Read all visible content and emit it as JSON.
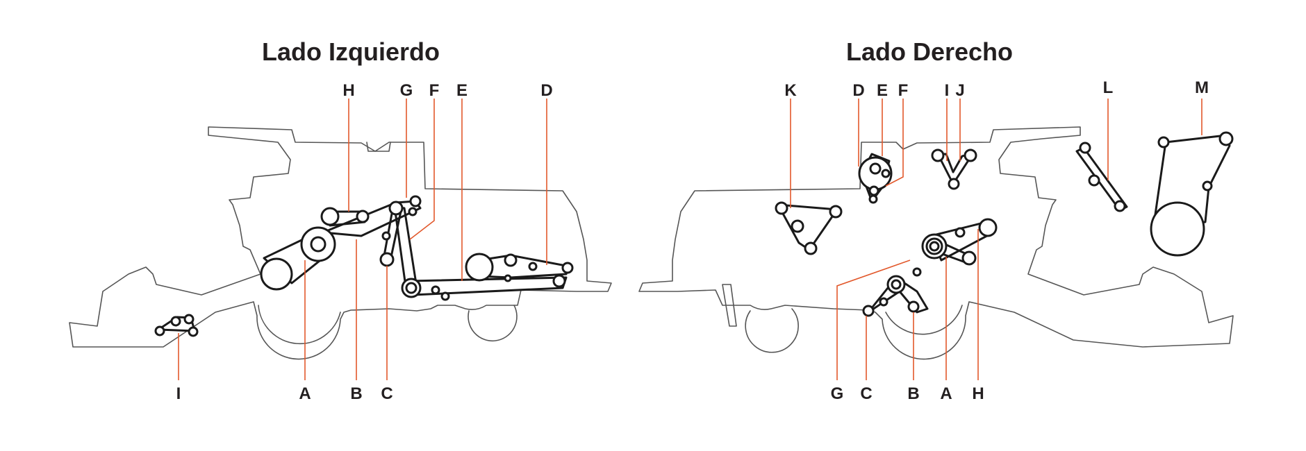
{
  "diagrams": [
    {
      "title": "Lado Izquierdo",
      "top_labels": [
        "H",
        "G",
        "F",
        "E",
        "D"
      ],
      "bottom_labels": [
        "I",
        "A",
        "B",
        "C"
      ]
    },
    {
      "title": "Lado Derecho",
      "top_labels": [
        "K",
        "D",
        "E",
        "F",
        "I",
        "J",
        "L",
        "M"
      ],
      "bottom_labels": [
        "G",
        "C",
        "B",
        "A",
        "H"
      ]
    }
  ],
  "colors": {
    "leader_line": "#e2582b",
    "belt": "#1a1a1a",
    "machine_outline": "#555555",
    "text": "#231f20"
  }
}
